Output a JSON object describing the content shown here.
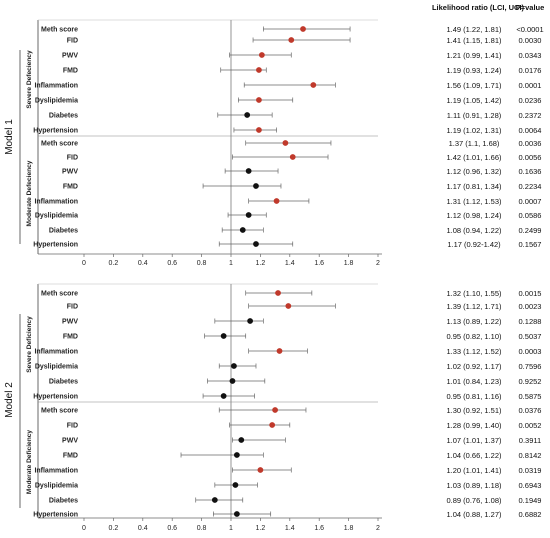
{
  "header": {
    "lr_title": "Likelihood ratio (LCI, UCI)",
    "p_title": "P=value"
  },
  "chart_data": [
    {
      "type": "forest",
      "title": "Model 1",
      "xlim": [
        0,
        2
      ],
      "xticks": [
        "0",
        "0.2",
        "0.4",
        "0.6",
        "0.8",
        "1",
        "1.2",
        "1.4",
        "1.6",
        "1.8",
        "2"
      ],
      "reference_line": 1,
      "groups": [
        {
          "name": "Severe Defeciency",
          "rows": [
            {
              "label": "Meth score",
              "est": 1.49,
              "lci": 1.22,
              "uci": 1.81,
              "color": "#c0392b",
              "text": "1.49 (1.22, 1.81)",
              "p": "<0.0001"
            },
            {
              "label": "FID",
              "est": 1.41,
              "lci": 1.15,
              "uci": 1.81,
              "color": "#c0392b",
              "text": "1.41 (1.15, 1.81)",
              "p": "0.0030"
            },
            {
              "label": "PWV",
              "est": 1.21,
              "lci": 0.99,
              "uci": 1.41,
              "color": "#c0392b",
              "text": "1.21 (0.99, 1.41)",
              "p": "0.0343"
            },
            {
              "label": "FMD",
              "est": 1.19,
              "lci": 0.93,
              "uci": 1.24,
              "color": "#c0392b",
              "text": "1.19 (0.93, 1.24)",
              "p": "0.0176"
            },
            {
              "label": "Inflammation",
              "est": 1.56,
              "lci": 1.09,
              "uci": 1.71,
              "color": "#c0392b",
              "text": "1.56 (1.09, 1.71)",
              "p": "0.0001"
            },
            {
              "label": "Dyslipidemia",
              "est": 1.19,
              "lci": 1.05,
              "uci": 1.42,
              "color": "#c0392b",
              "text": "1.19 (1.05, 1.42)",
              "p": "0.0236"
            },
            {
              "label": "Diabetes",
              "est": 1.11,
              "lci": 0.91,
              "uci": 1.28,
              "color": "#111111",
              "text": "1.11 (0.91, 1.28)",
              "p": "0.2372"
            },
            {
              "label": "Hypertension",
              "est": 1.19,
              "lci": 1.02,
              "uci": 1.31,
              "color": "#c0392b",
              "text": "1.19 (1.02, 1.31)",
              "p": "0.0064"
            }
          ]
        },
        {
          "name": "Moderate Defeciency",
          "rows": [
            {
              "label": "Meth score",
              "est": 1.37,
              "lci": 1.1,
              "uci": 1.68,
              "color": "#c0392b",
              "text": "1.37 (1.1, 1.68)",
              "p": "0.0036"
            },
            {
              "label": "FID",
              "est": 1.42,
              "lci": 1.01,
              "uci": 1.66,
              "color": "#c0392b",
              "text": "1.42 (1.01, 1.66)",
              "p": "0.0056"
            },
            {
              "label": "PWV",
              "est": 1.12,
              "lci": 0.96,
              "uci": 1.32,
              "color": "#111111",
              "text": "1.12 (0.96, 1.32)",
              "p": "0.1636"
            },
            {
              "label": "FMD",
              "est": 1.17,
              "lci": 0.81,
              "uci": 1.34,
              "color": "#111111",
              "text": "1.17 (0.81, 1.34)",
              "p": "0.2234"
            },
            {
              "label": "Inflammation",
              "est": 1.31,
              "lci": 1.12,
              "uci": 1.53,
              "color": "#c0392b",
              "text": "1.31 (1.12, 1.53)",
              "p": "0.0007"
            },
            {
              "label": "Dyslipidemia",
              "est": 1.12,
              "lci": 0.98,
              "uci": 1.24,
              "color": "#111111",
              "text": "1.12 (0.98, 1.24)",
              "p": "0.0586"
            },
            {
              "label": "Diabetes",
              "est": 1.08,
              "lci": 0.94,
              "uci": 1.22,
              "color": "#111111",
              "text": "1.08 (0.94, 1.22)",
              "p": "0.2499"
            },
            {
              "label": "Hypertension",
              "est": 1.17,
              "lci": 0.92,
              "uci": 1.42,
              "color": "#111111",
              "text": "1.17 (0.92-1.42)",
              "p": "0.1567"
            }
          ]
        }
      ]
    },
    {
      "type": "forest",
      "title": "Model 2",
      "xlim": [
        0,
        2
      ],
      "xticks": [
        "0",
        "0.2",
        "0.4",
        "0.6",
        "0.8",
        "1",
        "1.2",
        "1.4",
        "1.6",
        "1.8",
        "2"
      ],
      "reference_line": 1,
      "groups": [
        {
          "name": "Severe Deficiency",
          "rows": [
            {
              "label": "Meth score",
              "est": 1.32,
              "lci": 1.1,
              "uci": 1.55,
              "color": "#c0392b",
              "text": "1.32 (1.10, 1.55)",
              "p": "0.0015"
            },
            {
              "label": "FID",
              "est": 1.39,
              "lci": 1.12,
              "uci": 1.71,
              "color": "#c0392b",
              "text": "1.39 (1.12, 1.71)",
              "p": "0.0023"
            },
            {
              "label": "PWV",
              "est": 1.13,
              "lci": 0.89,
              "uci": 1.22,
              "color": "#111111",
              "text": "1.13 (0.89, 1.22)",
              "p": "0.1288"
            },
            {
              "label": "FMD",
              "est": 0.95,
              "lci": 0.82,
              "uci": 1.1,
              "color": "#111111",
              "text": "0.95 (0.82, 1.10)",
              "p": "0.5037"
            },
            {
              "label": "Inflammation",
              "est": 1.33,
              "lci": 1.12,
              "uci": 1.52,
              "color": "#c0392b",
              "text": "1.33 (1.12, 1.52)",
              "p": "0.0003"
            },
            {
              "label": "Dyslipidemia",
              "est": 1.02,
              "lci": 0.92,
              "uci": 1.17,
              "color": "#111111",
              "text": "1.02 (0.92, 1.17)",
              "p": "0.7596"
            },
            {
              "label": "Diabetes",
              "est": 1.01,
              "lci": 0.84,
              "uci": 1.23,
              "color": "#111111",
              "text": "1.01 (0.84, 1.23)",
              "p": "0.9252"
            },
            {
              "label": "Hypertension",
              "est": 0.95,
              "lci": 0.81,
              "uci": 1.16,
              "color": "#111111",
              "text": "0.95 (0.81, 1.16)",
              "p": "0.5875"
            }
          ]
        },
        {
          "name": "Moderate Deficiency",
          "rows": [
            {
              "label": "Meth score",
              "est": 1.3,
              "lci": 0.92,
              "uci": 1.51,
              "color": "#c0392b",
              "text": "1.30 (0.92, 1.51)",
              "p": "0.0376"
            },
            {
              "label": "FID",
              "est": 1.28,
              "lci": 0.99,
              "uci": 1.4,
              "color": "#c0392b",
              "text": "1.28 (0.99, 1.40)",
              "p": "0.0052"
            },
            {
              "label": "PWV",
              "est": 1.07,
              "lci": 1.01,
              "uci": 1.37,
              "color": "#111111",
              "text": "1.07 (1.01, 1.37)",
              "p": "0.3911"
            },
            {
              "label": "FMD",
              "est": 1.04,
              "lci": 0.66,
              "uci": 1.22,
              "color": "#111111",
              "text": "1.04 (0.66, 1.22)",
              "p": "0.8142"
            },
            {
              "label": "Inflammation",
              "est": 1.2,
              "lci": 1.01,
              "uci": 1.41,
              "color": "#c0392b",
              "text": "1.20 (1.01, 1.41)",
              "p": "0.0319"
            },
            {
              "label": "Dyslipidemia",
              "est": 1.03,
              "lci": 0.89,
              "uci": 1.18,
              "color": "#111111",
              "text": "1.03 (0.89, 1.18)",
              "p": "0.6943"
            },
            {
              "label": "Diabetes",
              "est": 0.89,
              "lci": 0.76,
              "uci": 1.08,
              "color": "#111111",
              "text": "0.89 (0.76, 1.08)",
              "p": "0.1949"
            },
            {
              "label": "Hypertension",
              "est": 1.04,
              "lci": 0.88,
              "uci": 1.27,
              "color": "#111111",
              "text": "1.04 (0.88, 1.27)",
              "p": "0.6882"
            }
          ]
        }
      ]
    }
  ]
}
